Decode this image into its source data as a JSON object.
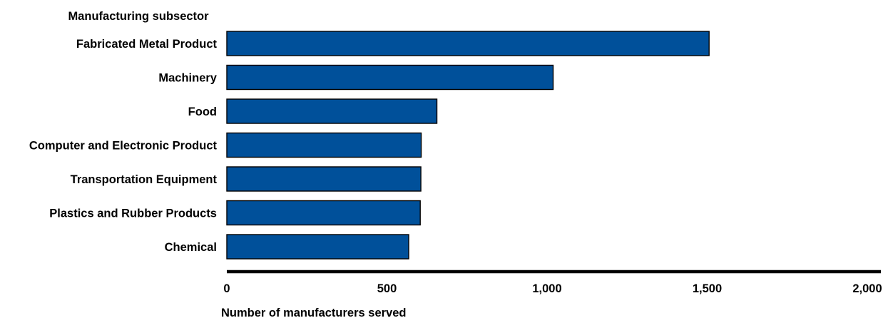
{
  "chart_data": {
    "type": "bar",
    "orientation": "horizontal",
    "category_axis_title": "Manufacturing subsector",
    "xlabel": "Number of manufacturers served",
    "categories": [
      "Fabricated Metal Product",
      "Machinery",
      "Food",
      "Computer and Electronic Product",
      "Transportation Equipment",
      "Plastics and Rubber Products",
      "Chemical"
    ],
    "values": [
      1506,
      1019,
      656,
      607,
      606,
      604,
      568
    ],
    "xlim": [
      0,
      2000
    ],
    "xticks": [
      0,
      500,
      1000,
      1500,
      2000
    ],
    "xtick_labels": [
      "0",
      "500",
      "1,000",
      "1,500",
      "2,000"
    ],
    "grid": false,
    "legend": "none",
    "bar_color": "#00509A",
    "bar_edge_color": "#000000"
  }
}
